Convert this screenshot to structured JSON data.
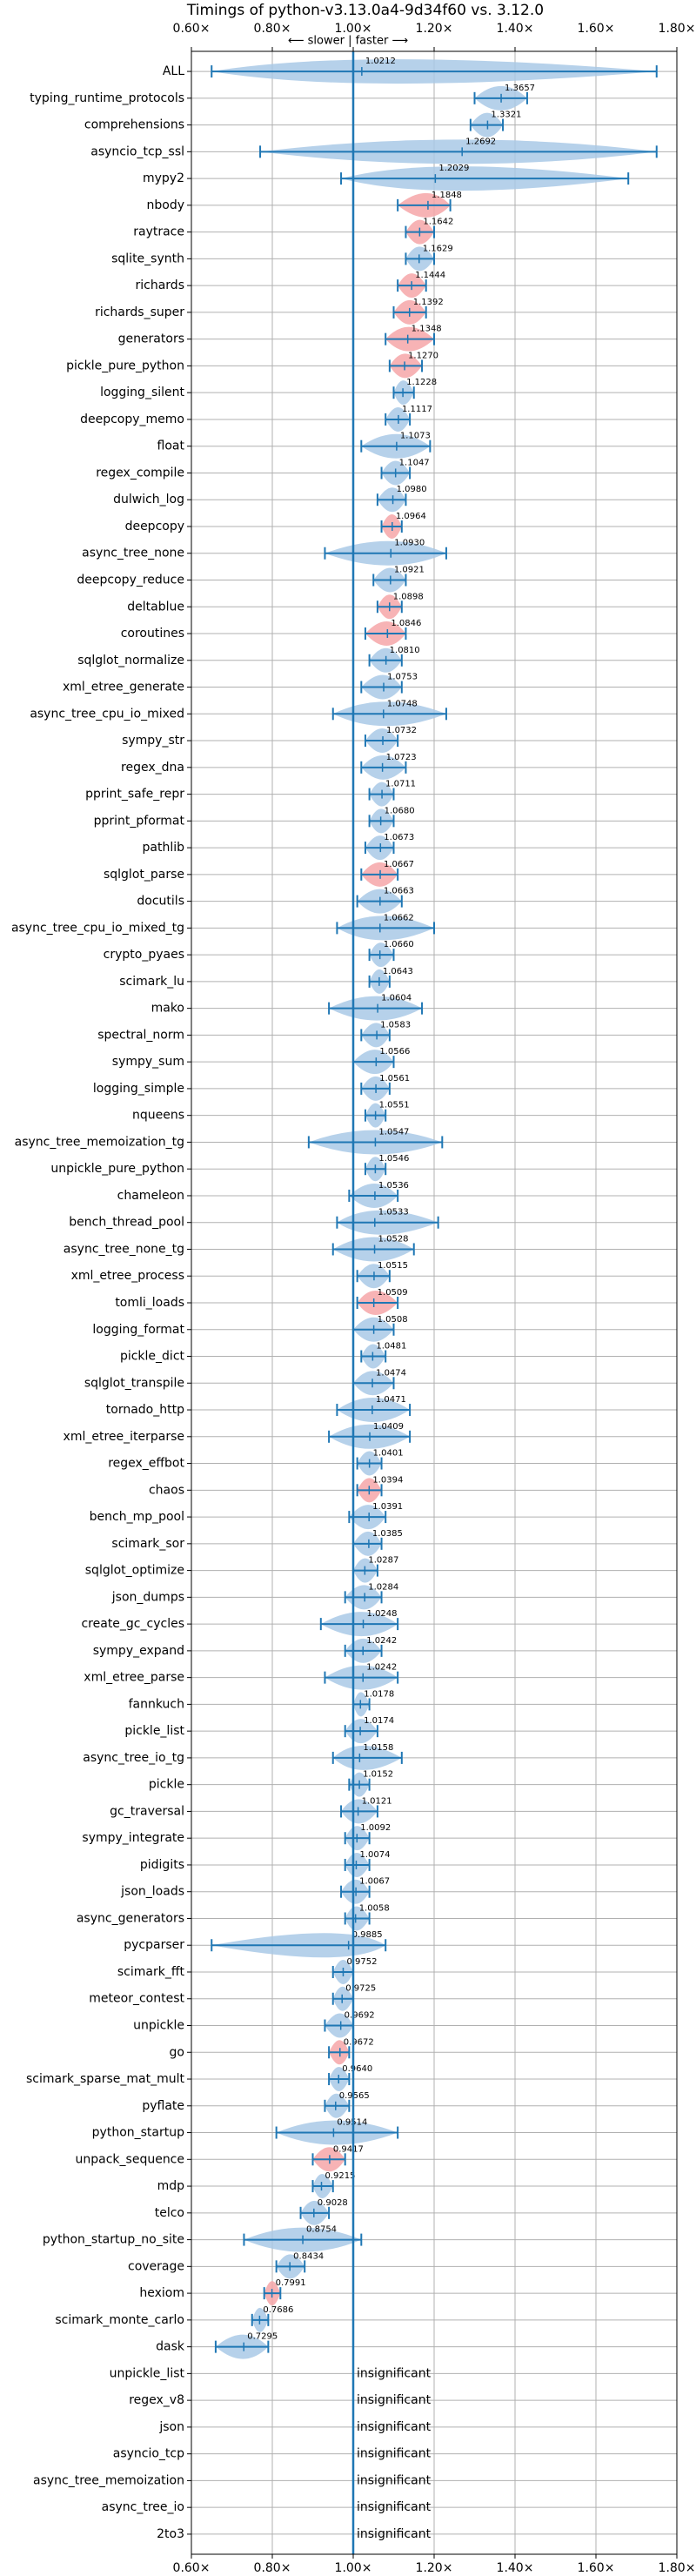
{
  "chart_data": {
    "type": "violin",
    "title": "Timings of python-v3.13.0a4-9d34f60 vs. 3.12.0",
    "xlabel": "⟵ slower | faster ⟶",
    "xlim": [
      0.6,
      1.8
    ],
    "xticks": [
      {
        "value": 0.6,
        "label": "0.60×"
      },
      {
        "value": 0.8,
        "label": "0.80×"
      },
      {
        "value": 1.0,
        "label": "1.00×"
      },
      {
        "value": 1.2,
        "label": "1.20×"
      },
      {
        "value": 1.4,
        "label": "1.40×"
      },
      {
        "value": 1.6,
        "label": "1.60×"
      },
      {
        "value": 1.8,
        "label": "1.80×"
      }
    ],
    "reference_line": 1,
    "grid": true,
    "line_color": "#1f77b4",
    "categories": [
      "ALL",
      "typing_runtime_protocols",
      "comprehensions",
      "asyncio_tcp_ssl",
      "mypy2",
      "nbody",
      "raytrace",
      "sqlite_synth",
      "richards",
      "richards_super",
      "generators",
      "pickle_pure_python",
      "logging_silent",
      "deepcopy_memo",
      "float",
      "regex_compile",
      "dulwich_log",
      "deepcopy",
      "async_tree_none",
      "deepcopy_reduce",
      "deltablue",
      "coroutines",
      "sqlglot_normalize",
      "xml_etree_generate",
      "async_tree_cpu_io_mixed",
      "sympy_str",
      "regex_dna",
      "pprint_safe_repr",
      "pprint_pformat",
      "pathlib",
      "sqlglot_parse",
      "docutils",
      "async_tree_cpu_io_mixed_tg",
      "crypto_pyaes",
      "scimark_lu",
      "mako",
      "spectral_norm",
      "sympy_sum",
      "logging_simple",
      "nqueens",
      "async_tree_memoization_tg",
      "unpickle_pure_python",
      "chameleon",
      "bench_thread_pool",
      "async_tree_none_tg",
      "xml_etree_process",
      "tomli_loads",
      "logging_format",
      "pickle_dict",
      "sqlglot_transpile",
      "tornado_http",
      "xml_etree_iterparse",
      "regex_effbot",
      "chaos",
      "bench_mp_pool",
      "scimark_sor",
      "sqlglot_optimize",
      "json_dumps",
      "create_gc_cycles",
      "sympy_expand",
      "xml_etree_parse",
      "fannkuch",
      "pickle_list",
      "async_tree_io_tg",
      "pickle",
      "gc_traversal",
      "sympy_integrate",
      "pidigits",
      "json_loads",
      "async_generators",
      "pycparser",
      "scimark_fft",
      "meteor_contest",
      "unpickle",
      "go",
      "scimark_sparse_mat_mult",
      "pyflate",
      "python_startup",
      "unpack_sequence",
      "mdp",
      "telco",
      "python_startup_no_site",
      "coverage",
      "hexiom",
      "scimark_monte_carlo",
      "dask",
      "unpickle_list",
      "regex_v8",
      "json",
      "asyncio_tcp",
      "async_tree_memoization",
      "async_tree_io",
      "2to3"
    ],
    "values": [
      1.0212,
      1.3657,
      1.3321,
      1.2692,
      1.2029,
      1.1848,
      1.1642,
      1.1629,
      1.1444,
      1.1392,
      1.1348,
      1.127,
      1.1228,
      1.1117,
      1.1073,
      1.1047,
      1.098,
      1.0964,
      1.093,
      1.0921,
      1.0898,
      1.0846,
      1.081,
      1.0753,
      1.0748,
      1.0732,
      1.0723,
      1.0711,
      1.068,
      1.0673,
      1.0667,
      1.0663,
      1.0662,
      1.066,
      1.0643,
      1.0604,
      1.0583,
      1.0566,
      1.0561,
      1.0551,
      1.0547,
      1.0546,
      1.0536,
      1.0533,
      1.0528,
      1.0515,
      1.0509,
      1.0508,
      1.0481,
      1.0474,
      1.0471,
      1.0409,
      1.0401,
      1.0394,
      1.0391,
      1.0385,
      1.0287,
      1.0284,
      1.0248,
      1.0242,
      1.0242,
      1.0178,
      1.0174,
      1.0158,
      1.0152,
      1.0121,
      1.0092,
      1.0074,
      1.0067,
      1.0058,
      0.9885,
      0.9752,
      0.9725,
      0.9692,
      0.9672,
      0.964,
      0.9565,
      0.9514,
      0.9417,
      0.9215,
      0.9028,
      0.8754,
      0.8434,
      0.7991,
      0.7686,
      0.7295,
      null,
      null,
      null,
      null,
      null,
      null,
      null
    ],
    "value_labels": [
      "1.0212",
      "1.3657",
      "1.3321",
      "1.2692",
      "1.2029",
      "1.1848",
      "1.1642",
      "1.1629",
      "1.1444",
      "1.1392",
      "1.1348",
      "1.1270",
      "1.1228",
      "1.1117",
      "1.1073",
      "1.1047",
      "1.0980",
      "1.0964",
      "1.0930",
      "1.0921",
      "1.0898",
      "1.0846",
      "1.0810",
      "1.0753",
      "1.0748",
      "1.0732",
      "1.0723",
      "1.0711",
      "1.0680",
      "1.0673",
      "1.0667",
      "1.0663",
      "1.0662",
      "1.0660",
      "1.0643",
      "1.0604",
      "1.0583",
      "1.0566",
      "1.0561",
      "1.0551",
      "1.0547",
      "1.0546",
      "1.0536",
      "1.0533",
      "1.0528",
      "1.0515",
      "1.0509",
      "1.0508",
      "1.0481",
      "1.0474",
      "1.0471",
      "1.0409",
      "1.0401",
      "1.0394",
      "1.0391",
      "1.0385",
      "1.0287",
      "1.0284",
      "1.0248",
      "1.0242",
      "1.0242",
      "1.0178",
      "1.0174",
      "1.0158",
      "1.0152",
      "1.0121",
      "1.0092",
      "1.0074",
      "1.0067",
      "1.0058",
      "0.9885",
      "0.9752",
      "0.9725",
      "0.9692",
      "0.9672",
      "0.9640",
      "0.9565",
      "0.9514",
      "0.9417",
      "0.9215",
      "0.9028",
      "0.8754",
      "0.8434",
      "0.7991",
      "0.7686",
      "0.7295",
      "insignificant",
      "insignificant",
      "insignificant",
      "insignificant",
      "insignificant",
      "insignificant",
      "insignificant"
    ],
    "whisker_low": [
      0.65,
      1.3,
      1.29,
      0.77,
      0.97,
      1.11,
      1.13,
      1.13,
      1.11,
      1.1,
      1.08,
      1.09,
      1.1,
      1.08,
      1.02,
      1.07,
      1.06,
      1.07,
      0.93,
      1.05,
      1.06,
      1.03,
      1.04,
      1.02,
      0.95,
      1.03,
      1.02,
      1.04,
      1.04,
      1.03,
      1.02,
      1.01,
      0.96,
      1.04,
      1.04,
      0.94,
      1.02,
      1.0,
      1.02,
      1.03,
      0.89,
      1.03,
      0.99,
      0.96,
      0.95,
      1.01,
      1.01,
      1.0,
      1.02,
      1.0,
      0.96,
      0.94,
      1.01,
      1.01,
      0.99,
      1.0,
      1.0,
      0.98,
      0.92,
      0.98,
      0.93,
      1.0,
      0.98,
      0.95,
      0.99,
      0.97,
      0.98,
      0.98,
      0.97,
      0.98,
      0.65,
      0.95,
      0.95,
      0.93,
      0.94,
      0.94,
      0.93,
      0.81,
      0.9,
      0.9,
      0.87,
      0.73,
      0.81,
      0.78,
      0.75,
      0.66,
      null,
      null,
      null,
      null,
      null,
      null,
      null
    ],
    "whisker_high": [
      1.75,
      1.43,
      1.37,
      1.75,
      1.68,
      1.24,
      1.2,
      1.2,
      1.18,
      1.18,
      1.2,
      1.17,
      1.15,
      1.14,
      1.19,
      1.14,
      1.13,
      1.12,
      1.23,
      1.13,
      1.12,
      1.13,
      1.12,
      1.12,
      1.23,
      1.11,
      1.13,
      1.1,
      1.1,
      1.1,
      1.11,
      1.12,
      1.2,
      1.1,
      1.09,
      1.17,
      1.09,
      1.1,
      1.09,
      1.08,
      1.22,
      1.08,
      1.11,
      1.21,
      1.15,
      1.09,
      1.11,
      1.1,
      1.08,
      1.1,
      1.14,
      1.14,
      1.07,
      1.07,
      1.08,
      1.07,
      1.06,
      1.07,
      1.11,
      1.07,
      1.11,
      1.04,
      1.06,
      1.12,
      1.04,
      1.06,
      1.04,
      1.04,
      1.04,
      1.04,
      1.08,
      1.0,
      1.0,
      1.0,
      0.99,
      0.99,
      0.99,
      1.11,
      0.98,
      0.95,
      0.94,
      1.02,
      0.88,
      0.82,
      0.79,
      0.79,
      null,
      null,
      null,
      null,
      null,
      null,
      null
    ],
    "violin_colors": [
      "#a9c9e6",
      "#a9c9e6",
      "#a9c9e6",
      "#a9c9e6",
      "#a9c9e6",
      "#f6a6a8",
      "#f6a6a8",
      "#a9c9e6",
      "#f6a6a8",
      "#f6a6a8",
      "#f6a6a8",
      "#f6a6a8",
      "#a9c9e6",
      "#a9c9e6",
      "#a9c9e6",
      "#a9c9e6",
      "#a9c9e6",
      "#f6a6a8",
      "#a9c9e6",
      "#a9c9e6",
      "#f6a6a8",
      "#f6a6a8",
      "#a9c9e6",
      "#a9c9e6",
      "#a9c9e6",
      "#a9c9e6",
      "#a9c9e6",
      "#a9c9e6",
      "#a9c9e6",
      "#a9c9e6",
      "#f6a6a8",
      "#a9c9e6",
      "#a9c9e6",
      "#a9c9e6",
      "#a9c9e6",
      "#a9c9e6",
      "#a9c9e6",
      "#a9c9e6",
      "#a9c9e6",
      "#a9c9e6",
      "#a9c9e6",
      "#a9c9e6",
      "#a9c9e6",
      "#a9c9e6",
      "#a9c9e6",
      "#a9c9e6",
      "#f6a6a8",
      "#a9c9e6",
      "#a9c9e6",
      "#a9c9e6",
      "#a9c9e6",
      "#a9c9e6",
      "#a9c9e6",
      "#f6a6a8",
      "#a9c9e6",
      "#a9c9e6",
      "#a9c9e6",
      "#a9c9e6",
      "#a9c9e6",
      "#a9c9e6",
      "#a9c9e6",
      "#a9c9e6",
      "#a9c9e6",
      "#a9c9e6",
      "#a9c9e6",
      "#a9c9e6",
      "#a9c9e6",
      "#a9c9e6",
      "#a9c9e6",
      "#a9c9e6",
      "#a9c9e6",
      "#a9c9e6",
      "#a9c9e6",
      "#a9c9e6",
      "#f6a6a8",
      "#a9c9e6",
      "#a9c9e6",
      "#a9c9e6",
      "#f6a6a8",
      "#a9c9e6",
      "#a9c9e6",
      "#a9c9e6",
      "#a9c9e6",
      "#f6a6a8",
      "#a9c9e6",
      "#a9c9e6",
      null,
      null,
      null,
      null,
      null,
      null,
      null
    ]
  }
}
